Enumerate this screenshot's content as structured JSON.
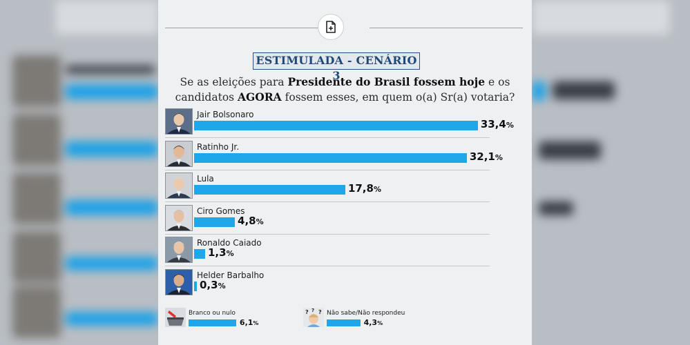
{
  "header": {
    "icon": "document-add-icon"
  },
  "chart_data": {
    "type": "bar",
    "orientation": "horizontal",
    "title": "ESTIMULADA - CENÁRIO 3",
    "question_parts": [
      {
        "text": "Se as eleições para ",
        "bold": false
      },
      {
        "text": "Presidente do Brasil fossem hoje",
        "bold": true
      },
      {
        "text": " e os candidatos ",
        "bold": false
      },
      {
        "text": "AGORA",
        "bold": true
      },
      {
        "text": " fossem esses, em quem o(a) Sr(a) votaria?",
        "bold": false
      }
    ],
    "unit": "%",
    "categories": [
      "Jair Bolsonaro",
      "Ratinho Jr.",
      "Lula",
      "Ciro Gomes",
      "Ronaldo Caiado",
      "Helder Barbalho"
    ],
    "values": [
      33.4,
      32.1,
      17.8,
      4.8,
      1.3,
      0.3
    ],
    "labels": [
      "33,4",
      "32,1",
      "17,8",
      "4,8",
      "1,3",
      "0,3"
    ],
    "bar_color": "#20a7ea",
    "extra": [
      {
        "name": "Branco ou nulo",
        "value": 6.1,
        "label": "6,1",
        "icon": "ballot-box-icon"
      },
      {
        "name": "Não sabe/Não respondeu",
        "value": 4.3,
        "label": "4,3",
        "icon": "confused-person-icon"
      }
    ]
  }
}
